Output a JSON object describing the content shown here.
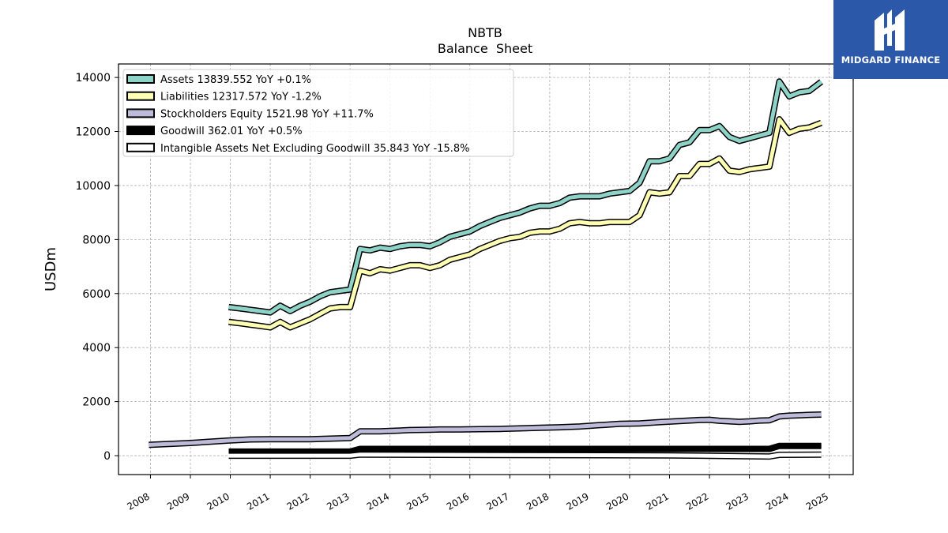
{
  "brand": {
    "name": "MIDGARD FINANCE",
    "color": "#2b58a8"
  },
  "chart_data": {
    "type": "line",
    "title": "NBTB",
    "subtitle": "Balance  Sheet",
    "ylabel": "USDm",
    "xlabel": "",
    "ylim": [
      -700,
      14500
    ],
    "xlim": [
      2007.2,
      2025.6
    ],
    "yticks": [
      0,
      2000,
      4000,
      6000,
      8000,
      10000,
      12000,
      14000
    ],
    "xticks": [
      2008,
      2009,
      2010,
      2011,
      2012,
      2013,
      2014,
      2015,
      2016,
      2017,
      2018,
      2019,
      2020,
      2021,
      2022,
      2023,
      2024,
      2025
    ],
    "grid": true,
    "legend_position": "top-left",
    "series": [
      {
        "name": "Assets",
        "legend": "Assets  13839.552 YoY +0.1%",
        "color": "#8dd3c7",
        "x": [
          2009.96,
          2010.25,
          2010.5,
          2010.75,
          2011.0,
          2011.25,
          2011.5,
          2011.75,
          2012.0,
          2012.25,
          2012.5,
          2012.75,
          2013.0,
          2013.25,
          2013.5,
          2013.75,
          2014.0,
          2014.25,
          2014.5,
          2014.75,
          2015.0,
          2015.25,
          2015.5,
          2015.75,
          2016.0,
          2016.25,
          2016.5,
          2016.75,
          2017.0,
          2017.25,
          2017.5,
          2017.75,
          2018.0,
          2018.25,
          2018.5,
          2018.75,
          2019.0,
          2019.25,
          2019.5,
          2019.75,
          2020.0,
          2020.25,
          2020.5,
          2020.75,
          2021.0,
          2021.25,
          2021.5,
          2021.75,
          2022.0,
          2022.25,
          2022.5,
          2022.75,
          2023.0,
          2023.25,
          2023.5,
          2023.75,
          2024.0,
          2024.25,
          2024.5,
          2024.8
        ],
        "y": [
          5500,
          5450,
          5400,
          5350,
          5300,
          5550,
          5350,
          5550,
          5700,
          5900,
          6050,
          6100,
          6150,
          7650,
          7600,
          7700,
          7650,
          7750,
          7800,
          7800,
          7750,
          7900,
          8100,
          8200,
          8300,
          8500,
          8650,
          8800,
          8900,
          9000,
          9150,
          9250,
          9250,
          9350,
          9550,
          9600,
          9600,
          9600,
          9700,
          9750,
          9800,
          10100,
          10900,
          10900,
          11000,
          11500,
          11600,
          12050,
          12050,
          12200,
          11800,
          11650,
          11750,
          11850,
          11950,
          13850,
          13300,
          13450,
          13500,
          13840
        ]
      },
      {
        "name": "Liabilities",
        "legend": "Liabilities  12317.572 YoY -1.2%",
        "color": "#ffffb3",
        "x": [
          2009.96,
          2010.25,
          2010.5,
          2010.75,
          2011.0,
          2011.25,
          2011.5,
          2011.75,
          2012.0,
          2012.25,
          2012.5,
          2012.75,
          2013.0,
          2013.25,
          2013.5,
          2013.75,
          2014.0,
          2014.25,
          2014.5,
          2014.75,
          2015.0,
          2015.25,
          2015.5,
          2015.75,
          2016.0,
          2016.25,
          2016.5,
          2016.75,
          2017.0,
          2017.25,
          2017.5,
          2017.75,
          2018.0,
          2018.25,
          2018.5,
          2018.75,
          2019.0,
          2019.25,
          2019.5,
          2019.75,
          2020.0,
          2020.25,
          2020.5,
          2020.75,
          2021.0,
          2021.25,
          2021.5,
          2021.75,
          2022.0,
          2022.25,
          2022.5,
          2022.75,
          2023.0,
          2023.25,
          2023.5,
          2023.75,
          2024.0,
          2024.25,
          2024.5,
          2024.8
        ],
        "y": [
          4950,
          4900,
          4850,
          4800,
          4750,
          4950,
          4750,
          4900,
          5050,
          5250,
          5450,
          5500,
          5500,
          6850,
          6750,
          6900,
          6850,
          6950,
          7050,
          7050,
          6950,
          7050,
          7250,
          7350,
          7450,
          7650,
          7800,
          7950,
          8050,
          8100,
          8250,
          8300,
          8300,
          8400,
          8600,
          8650,
          8600,
          8600,
          8650,
          8650,
          8650,
          8900,
          9750,
          9700,
          9750,
          10350,
          10350,
          10800,
          10800,
          11000,
          10550,
          10500,
          10600,
          10650,
          10700,
          12450,
          11950,
          12100,
          12150,
          12318
        ]
      },
      {
        "name": "Stockholders Equity",
        "legend": "Stockholders Equity  1521.98 YoY +11.7%",
        "color": "#bebada",
        "x": [
          2007.96,
          2009.0,
          2009.96,
          2010.5,
          2011.0,
          2011.5,
          2012.0,
          2012.5,
          2013.0,
          2013.25,
          2013.75,
          2014.25,
          2014.5,
          2015.0,
          2015.25,
          2015.75,
          2016.25,
          2016.75,
          2017.25,
          2017.75,
          2018.25,
          2018.75,
          2019.25,
          2019.75,
          2020.25,
          2020.75,
          2021.25,
          2021.75,
          2022.0,
          2022.25,
          2022.75,
          2023.0,
          2023.25,
          2023.5,
          2023.75,
          2024.0,
          2024.5,
          2024.8
        ],
        "y": [
          400,
          470,
          560,
          600,
          610,
          610,
          610,
          630,
          650,
          900,
          900,
          930,
          950,
          960,
          970,
          970,
          980,
          990,
          1010,
          1030,
          1050,
          1080,
          1130,
          1180,
          1190,
          1240,
          1280,
          1320,
          1330,
          1290,
          1250,
          1270,
          1300,
          1310,
          1450,
          1480,
          1510,
          1522
        ]
      },
      {
        "name": "Goodwill",
        "legend": "Goodwill  362.01 YoY +0.5%",
        "color": "#000000",
        "x": [
          2009.96,
          2013.0,
          2013.25,
          2023.5,
          2023.75,
          2024.8
        ],
        "y": [
          150,
          150,
          250,
          250,
          362,
          362
        ]
      },
      {
        "name": "Intangible Assets Net Excluding Goodwill",
        "legend": "Intangible Assets Net Excluding Goodwill  35.843 YoY -15.8%",
        "color": "#ffffff",
        "x": [
          2009.96,
          2013.0,
          2013.25,
          2018.0,
          2021.0,
          2023.5,
          2023.75,
          2024.8
        ],
        "y": [
          0,
          0,
          40,
          20,
          10,
          -30,
          30,
          36
        ]
      }
    ]
  }
}
